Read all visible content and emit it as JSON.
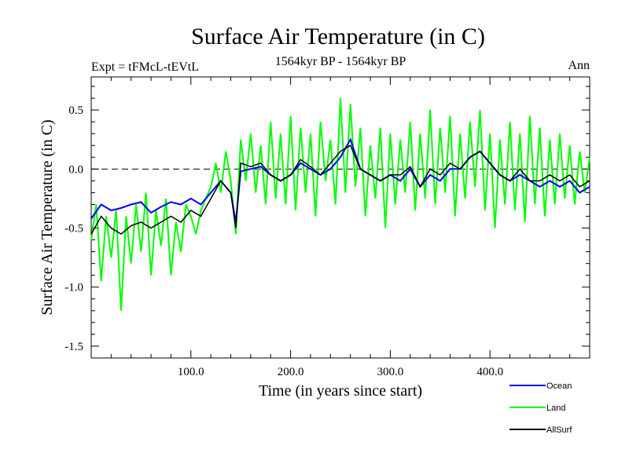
{
  "chart_data": {
    "type": "line",
    "title": "Surface Air Temperature (in C)",
    "subtitle": "1564kyr BP - 1564kyr BP",
    "experiment_label": "Expt = tFMcL-tEVtL",
    "season_label": "Ann",
    "xlabel": "Time (in years since start)",
    "ylabel": "Surface Air Temperature (in C)",
    "xlim": [
      0,
      500
    ],
    "ylim": [
      -1.6,
      0.78
    ],
    "x_ticks": [
      100,
      200,
      300,
      400
    ],
    "x_tick_labels": [
      "100.0",
      "200.0",
      "300.0",
      "400.0"
    ],
    "y_ticks": [
      -1.5,
      -1.0,
      -0.5,
      0.0,
      0.5
    ],
    "y_tick_labels": [
      "-1.5",
      "-1.0",
      "-0.5",
      "0.0",
      "0.5"
    ],
    "zero_line": true,
    "legend_position": "bottom-right",
    "series": [
      {
        "name": "Ocean",
        "color": "#0000ff",
        "x": [
          0,
          10,
          20,
          30,
          40,
          50,
          60,
          70,
          80,
          90,
          100,
          110,
          120,
          130,
          140,
          145,
          150,
          160,
          170,
          180,
          190,
          200,
          210,
          220,
          230,
          240,
          250,
          260,
          270,
          280,
          290,
          300,
          310,
          320,
          330,
          340,
          350,
          360,
          370,
          380,
          390,
          400,
          410,
          420,
          430,
          440,
          450,
          460,
          470,
          480,
          490,
          500
        ],
        "values": [
          -0.42,
          -0.3,
          -0.35,
          -0.33,
          -0.3,
          -0.28,
          -0.37,
          -0.32,
          -0.28,
          -0.3,
          -0.25,
          -0.3,
          -0.2,
          -0.1,
          -0.2,
          -0.45,
          -0.02,
          0.0,
          0.02,
          -0.05,
          -0.1,
          -0.05,
          0.05,
          0.0,
          -0.05,
          0.0,
          0.1,
          0.25,
          0.0,
          -0.05,
          -0.1,
          -0.05,
          -0.1,
          0.0,
          -0.15,
          -0.05,
          -0.1,
          0.0,
          0.0,
          0.1,
          0.15,
          0.05,
          -0.05,
          -0.1,
          -0.05,
          -0.1,
          -0.15,
          -0.1,
          -0.15,
          -0.1,
          -0.2,
          -0.15
        ]
      },
      {
        "name": "Land",
        "color": "#00ff00",
        "x": [
          0,
          5,
          10,
          15,
          20,
          25,
          30,
          35,
          40,
          45,
          50,
          55,
          60,
          65,
          70,
          75,
          80,
          85,
          90,
          95,
          100,
          105,
          110,
          115,
          120,
          125,
          130,
          135,
          140,
          145,
          150,
          155,
          160,
          165,
          170,
          175,
          180,
          185,
          190,
          195,
          200,
          205,
          210,
          215,
          220,
          225,
          230,
          235,
          240,
          245,
          250,
          255,
          260,
          265,
          270,
          275,
          280,
          285,
          290,
          295,
          300,
          305,
          310,
          315,
          320,
          325,
          330,
          335,
          340,
          345,
          350,
          355,
          360,
          365,
          370,
          375,
          380,
          385,
          390,
          395,
          400,
          405,
          410,
          415,
          420,
          425,
          430,
          435,
          440,
          445,
          450,
          455,
          460,
          465,
          470,
          475,
          480,
          485,
          490,
          495,
          500
        ],
        "values": [
          -0.6,
          -0.3,
          -0.95,
          -0.4,
          -0.75,
          -0.35,
          -1.2,
          -0.4,
          -0.8,
          -0.3,
          -0.7,
          -0.2,
          -0.9,
          -0.35,
          -0.65,
          -0.25,
          -0.9,
          -0.45,
          -0.7,
          -0.3,
          -0.4,
          -0.55,
          -0.35,
          -0.25,
          -0.15,
          0.05,
          -0.2,
          0.15,
          -0.1,
          -0.55,
          0.25,
          -0.1,
          0.3,
          -0.2,
          0.2,
          -0.3,
          0.4,
          -0.25,
          0.3,
          -0.3,
          0.45,
          -0.35,
          0.35,
          -0.2,
          0.3,
          -0.4,
          0.4,
          -0.1,
          0.25,
          -0.3,
          0.6,
          -0.2,
          0.55,
          -0.15,
          0.35,
          -0.4,
          0.2,
          -0.25,
          0.35,
          -0.5,
          0.3,
          -0.3,
          0.25,
          -0.2,
          0.4,
          -0.35,
          0.3,
          -0.25,
          0.5,
          -0.3,
          0.35,
          -0.2,
          0.45,
          -0.4,
          0.3,
          -0.25,
          0.4,
          -0.15,
          0.5,
          -0.35,
          0.3,
          -0.5,
          0.25,
          -0.3,
          0.4,
          -0.35,
          0.3,
          -0.45,
          0.45,
          -0.3,
          0.35,
          -0.4,
          0.25,
          -0.3,
          0.3,
          -0.25,
          0.2,
          -0.3,
          0.15,
          -0.2,
          0.1
        ]
      },
      {
        "name": "AllSurf",
        "color": "#000000",
        "x": [
          0,
          10,
          20,
          30,
          40,
          50,
          60,
          70,
          80,
          90,
          100,
          110,
          120,
          130,
          140,
          145,
          150,
          160,
          170,
          180,
          190,
          200,
          210,
          220,
          230,
          240,
          250,
          260,
          270,
          280,
          290,
          300,
          310,
          320,
          330,
          340,
          350,
          360,
          370,
          380,
          390,
          400,
          410,
          420,
          430,
          440,
          450,
          460,
          470,
          480,
          490,
          500
        ],
        "values": [
          -0.55,
          -0.4,
          -0.5,
          -0.55,
          -0.48,
          -0.45,
          -0.5,
          -0.45,
          -0.4,
          -0.45,
          -0.35,
          -0.4,
          -0.25,
          -0.1,
          -0.2,
          -0.5,
          0.05,
          0.02,
          0.05,
          -0.05,
          -0.1,
          -0.05,
          0.08,
          0.02,
          -0.05,
          0.05,
          0.15,
          0.2,
          0.0,
          -0.05,
          -0.1,
          -0.05,
          -0.05,
          0.02,
          -0.15,
          0.0,
          -0.05,
          0.05,
          0.0,
          0.1,
          0.15,
          0.05,
          -0.05,
          -0.1,
          0.0,
          -0.1,
          -0.1,
          -0.05,
          -0.1,
          -0.05,
          -0.15,
          -0.1
        ]
      }
    ]
  }
}
